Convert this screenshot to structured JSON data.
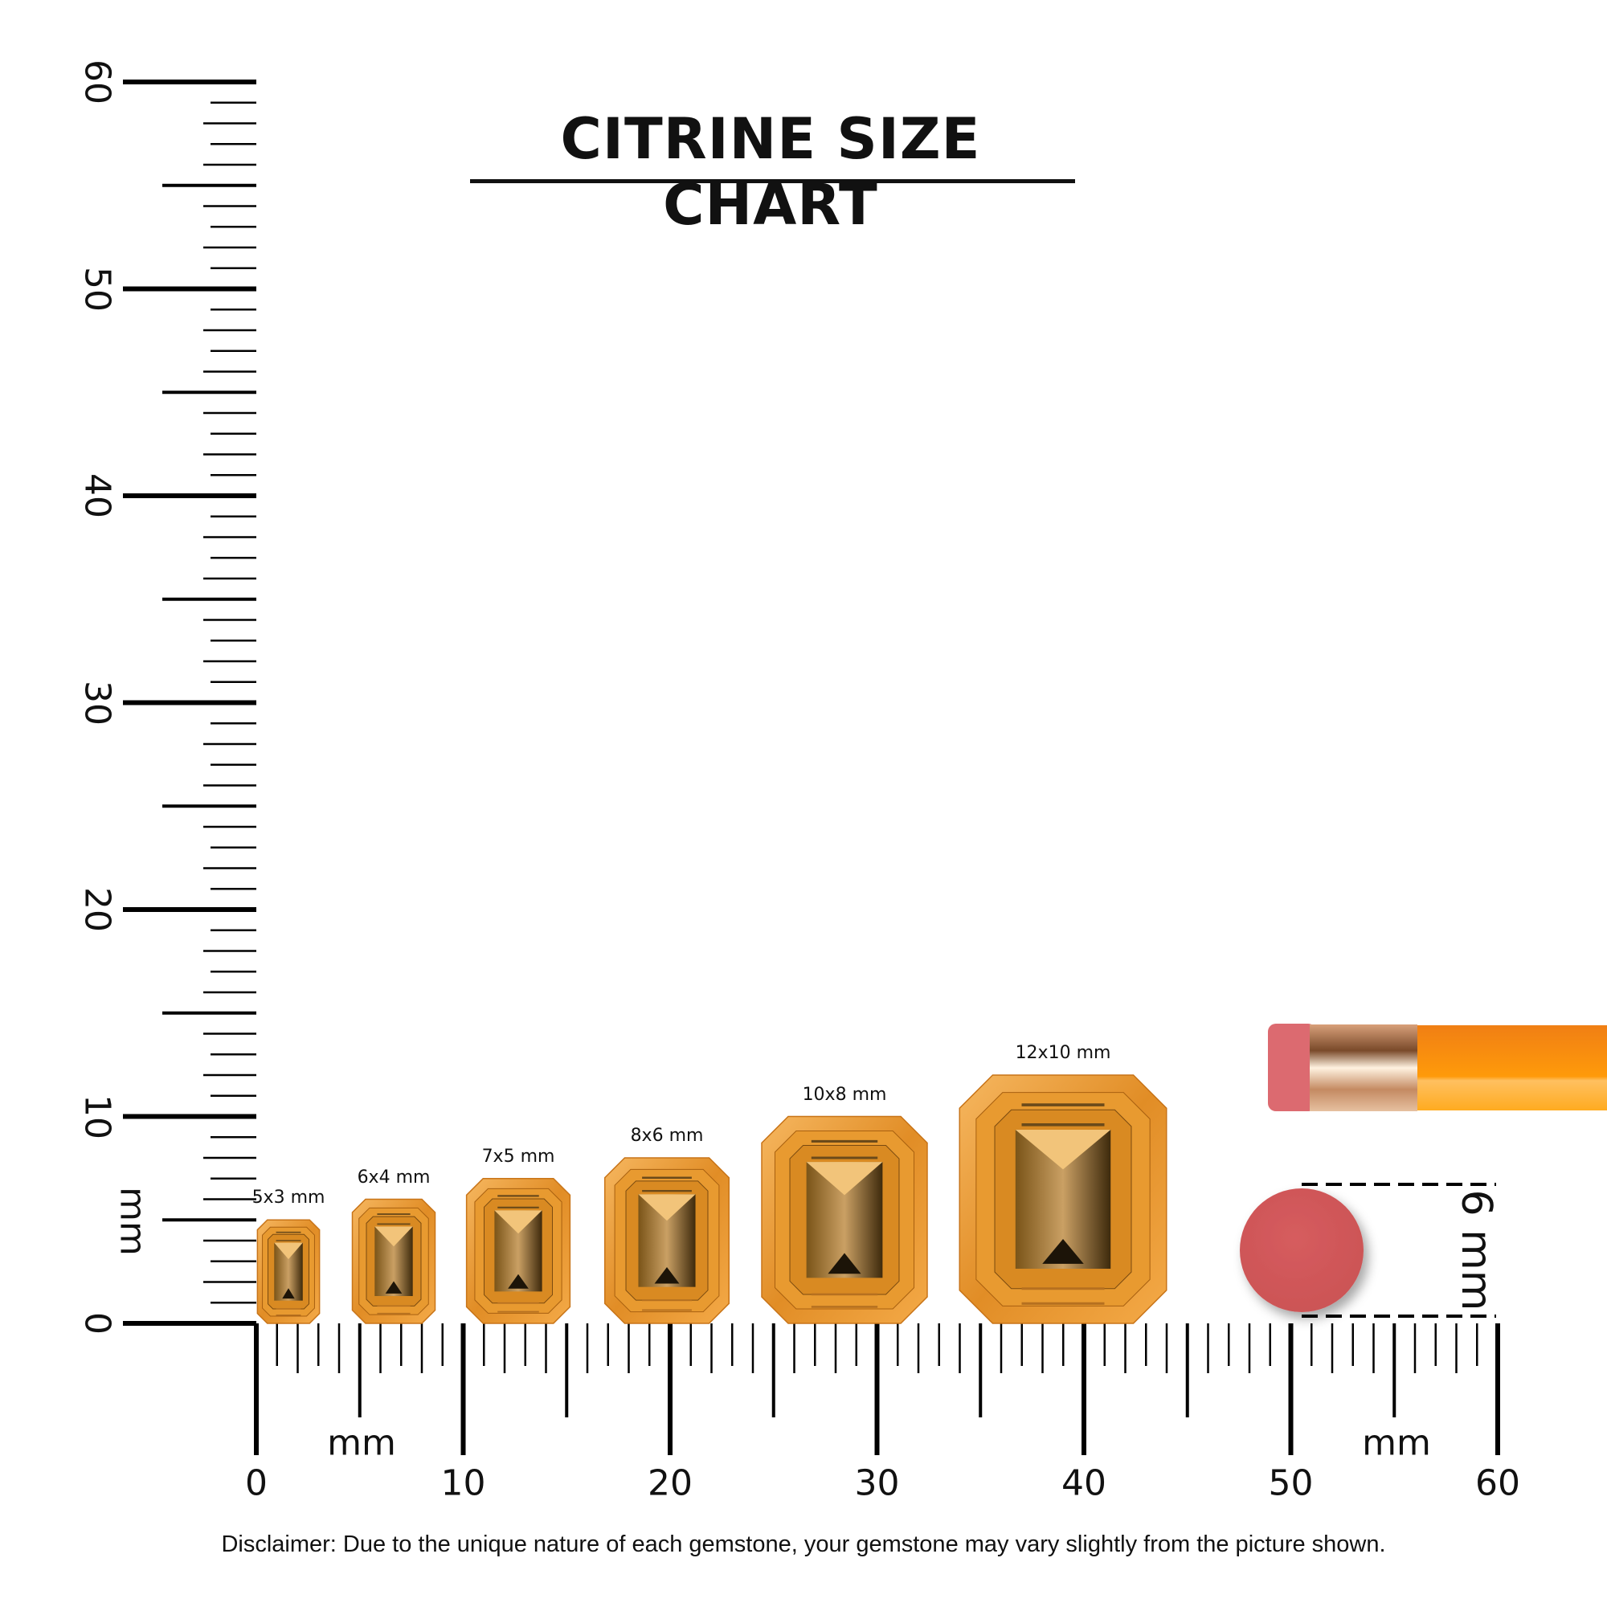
{
  "title": "CITRINE SIZE CHART",
  "unit": "mm",
  "vertical_ruler": {
    "labels": [
      "0",
      "10",
      "20",
      "30",
      "40",
      "50",
      "60"
    ],
    "unit_label": "mm"
  },
  "horizontal_ruler": {
    "labels": [
      "0",
      "10",
      "20",
      "30",
      "40",
      "50",
      "60"
    ],
    "unit_label_left": "mm",
    "unit_label_right": "mm"
  },
  "gems": [
    {
      "label": "5x3 mm",
      "length_mm": 5,
      "width_mm": 3
    },
    {
      "label": "6x4 mm",
      "length_mm": 6,
      "width_mm": 4
    },
    {
      "label": "7x5 mm",
      "length_mm": 7,
      "width_mm": 5
    },
    {
      "label": "8x6 mm",
      "length_mm": 8,
      "width_mm": 6
    },
    {
      "label": "10x8 mm",
      "length_mm": 10,
      "width_mm": 8
    },
    {
      "label": "12x10 mm",
      "length_mm": 12,
      "width_mm": 10
    }
  ],
  "reference": {
    "label": "6 mm",
    "diameter_mm": 6,
    "color": "#d35a5c"
  },
  "colors": {
    "gem_light": "#f3b45a",
    "gem_mid": "#e0902a",
    "gem_dark": "#6b4a1a",
    "pencil": "#ff9a0a",
    "ferrule": "#e8b38a",
    "eraser": "#dc6a70"
  },
  "disclaimer": "Disclaimer: Due to the unique nature of each gemstone, your gemstone may vary slightly from the picture shown."
}
